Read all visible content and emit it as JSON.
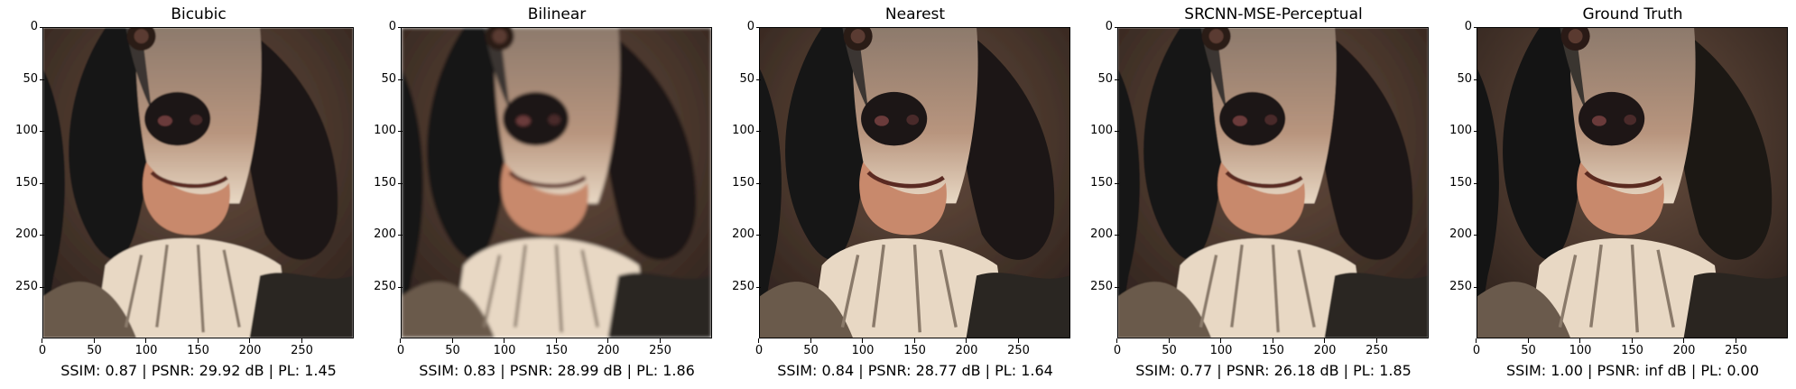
{
  "panels": [
    {
      "title": "Bicubic",
      "metrics": "SSIM: 0.87 | PSNR: 29.92 dB | PL: 1.45",
      "blur": 0.6
    },
    {
      "title": "Bilinear",
      "metrics": "SSIM: 0.83 | PSNR: 28.99 dB | PL: 1.86",
      "blur": 1.6
    },
    {
      "title": "Nearest",
      "metrics": "SSIM: 0.84 | PSNR: 28.77 dB | PL: 1.64",
      "blur": 0.3
    },
    {
      "title": "SRCNN-MSE-Perceptual",
      "metrics": "SSIM: 0.77 | PSNR: 26.18 dB | PL: 1.85",
      "blur": 0.4
    },
    {
      "title": "Ground Truth",
      "metrics": "SSIM: 1.00 | PSNR: inf dB | PL: 0.00",
      "blur": 0
    }
  ],
  "y_ticks": [
    "0",
    "50",
    "100",
    "150",
    "200",
    "250"
  ],
  "x_ticks": [
    "0",
    "50",
    "100",
    "150",
    "200",
    "250"
  ],
  "image_extent": [
    0,
    300
  ],
  "image_content": "dog-portrait",
  "colors": {
    "background_dark": "#2a1f1a",
    "fur_dark": "#141414",
    "fur_light": "#e8d8c4",
    "nose": "#1e1616",
    "skin": "#c8896c"
  }
}
